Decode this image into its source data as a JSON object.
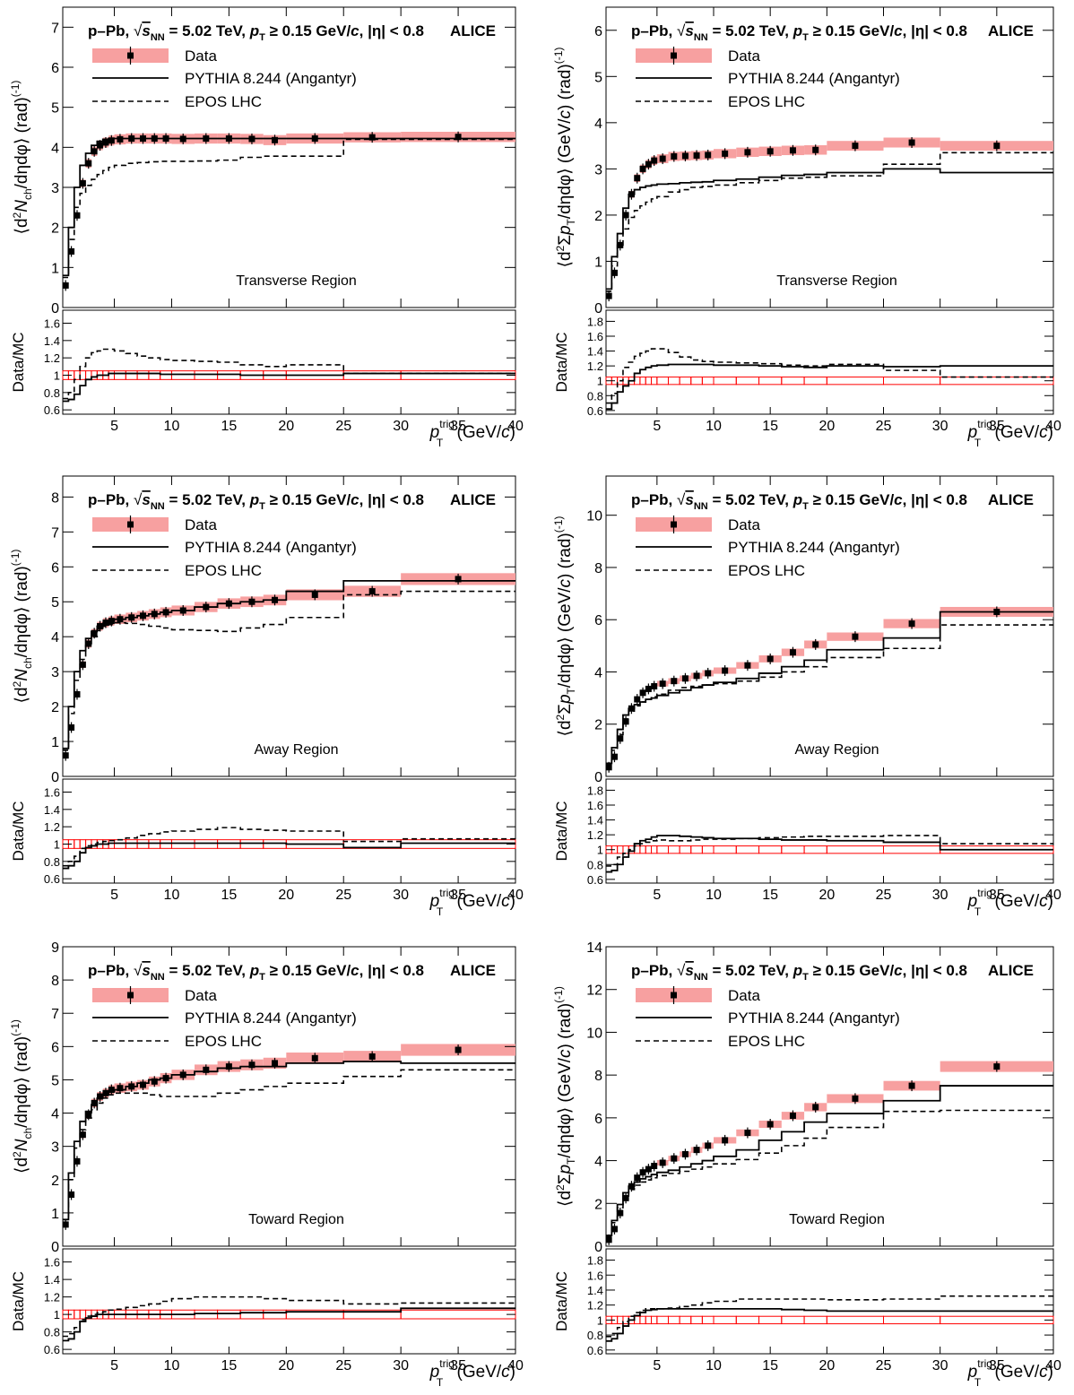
{
  "common": {
    "header_sys": "p–Pb, ",
    "header_sqrt": "√",
    "header_s": "s",
    "header_nn": "NN",
    "header_eq": " =  5.02 TeV, ",
    "header_p": "p",
    "header_t": "T",
    "header_cut": " ≥ 0.15 GeV/",
    "header_c": "c",
    "header_eta": ", |η| < 0.8",
    "alice": "ALICE",
    "legend_data": "Data",
    "legend_pythia": "PYTHIA 8.244 (Angantyr)",
    "legend_epos": "EPOS LHC",
    "ratio_ylabel": "Data/MC",
    "x_p": "p",
    "x_t": "T",
    "x_trig": "trig",
    "x_unit_a": " (GeV/",
    "x_unit_c": "c",
    "x_unit_b": ")",
    "y_nch_a": "⟨d",
    "y_nch_sup2": "2",
    "y_nch_N": "N",
    "y_nch_ch": "ch",
    "y_nch_rest": "/dηdφ⟩ (rad)",
    "y_nch_exp": "(-1)",
    "y_pt_a": "⟨d",
    "y_pt_sup2": "2",
    "y_pt_sigma": "Σ",
    "y_pt_p": "p",
    "y_pt_T": "T",
    "y_pt_rest": "/dηdφ⟩ (GeV/",
    "y_pt_c": "c",
    "y_pt_rest2": ") (rad)",
    "y_pt_exp": "(-1)"
  },
  "colors": {
    "band": "#f7a0a0",
    "data": "#000000",
    "pythia": "#000000",
    "epos": "#000000",
    "ratio_err": "#ff0000"
  },
  "chart_data": [
    {
      "type": "line",
      "region_label": "Transverse Region",
      "quantity": "Nch",
      "xlim": [
        0.5,
        40
      ],
      "ylim": [
        0,
        7.5
      ],
      "yticks": [
        0,
        1,
        2,
        3,
        4,
        5,
        6,
        7
      ],
      "ratio_ylim": [
        0.55,
        1.75
      ],
      "ratio_yticks": [
        0.6,
        0.8,
        1,
        1.2,
        1.4,
        1.6
      ],
      "xticks": [
        5,
        10,
        15,
        20,
        25,
        30,
        35,
        40
      ],
      "bins": [
        0.5,
        1,
        1.5,
        2,
        2.5,
        3,
        3.5,
        4,
        4.5,
        5,
        6,
        7,
        8,
        9,
        10,
        12,
        14,
        16,
        18,
        20,
        25,
        30,
        40
      ],
      "data": [
        0.55,
        1.4,
        2.3,
        3.1,
        3.6,
        3.9,
        4.05,
        4.12,
        4.17,
        4.2,
        4.22,
        4.22,
        4.22,
        4.22,
        4.21,
        4.22,
        4.22,
        4.21,
        4.18,
        4.22,
        4.25,
        4.26
      ],
      "pythia": [
        0.8,
        2.0,
        3.0,
        3.55,
        3.85,
        4.05,
        4.15,
        4.2,
        4.22,
        4.22,
        4.22,
        4.22,
        4.22,
        4.22,
        4.22,
        4.22,
        4.22,
        4.22,
        4.22,
        4.22,
        4.22,
        4.22
      ],
      "epos": [
        0.75,
        1.7,
        2.5,
        2.85,
        3.05,
        3.2,
        3.32,
        3.42,
        3.5,
        3.55,
        3.6,
        3.62,
        3.64,
        3.65,
        3.65,
        3.66,
        3.68,
        3.75,
        3.78,
        3.78,
        4.2,
        4.2
      ],
      "ratio_pythia": [
        0.7,
        0.72,
        0.78,
        0.88,
        0.95,
        0.98,
        1.0,
        1.0,
        1.02,
        1.02,
        1.02,
        1.02,
        1.02,
        1.01,
        1.01,
        1.01,
        1.01,
        1.0,
        1.0,
        1.0,
        1.02,
        1.02
      ],
      "ratio_epos": [
        0.73,
        0.8,
        0.95,
        1.1,
        1.2,
        1.26,
        1.28,
        1.3,
        1.3,
        1.28,
        1.25,
        1.22,
        1.2,
        1.18,
        1.17,
        1.16,
        1.15,
        1.12,
        1.1,
        1.12,
        1.02,
        1.02
      ]
    },
    {
      "type": "line",
      "region_label": "Transverse Region",
      "quantity": "SumPt",
      "xlim": [
        0.5,
        40
      ],
      "ylim": [
        0,
        6.5
      ],
      "yticks": [
        0,
        1,
        2,
        3,
        4,
        5,
        6
      ],
      "ratio_ylim": [
        0.55,
        1.95
      ],
      "ratio_yticks": [
        0.6,
        0.8,
        1,
        1.2,
        1.4,
        1.6,
        1.8
      ],
      "xticks": [
        5,
        10,
        15,
        20,
        25,
        30,
        35,
        40
      ],
      "bins": [
        0.5,
        1,
        1.5,
        2,
        2.5,
        3,
        3.5,
        4,
        4.5,
        5,
        6,
        7,
        8,
        9,
        10,
        12,
        14,
        16,
        18,
        20,
        25,
        30,
        40
      ],
      "data": [
        0.25,
        0.75,
        1.35,
        2.0,
        2.45,
        2.8,
        3.0,
        3.1,
        3.18,
        3.22,
        3.27,
        3.28,
        3.29,
        3.3,
        3.33,
        3.36,
        3.38,
        3.4,
        3.41,
        3.5,
        3.57,
        3.5
      ],
      "pythia": [
        0.4,
        1.1,
        1.6,
        2.15,
        2.45,
        2.55,
        2.6,
        2.63,
        2.65,
        2.67,
        2.68,
        2.7,
        2.71,
        2.72,
        2.75,
        2.78,
        2.82,
        2.86,
        2.88,
        2.92,
        3.0,
        2.92
      ],
      "epos": [
        0.35,
        0.9,
        1.35,
        1.7,
        1.95,
        2.1,
        2.2,
        2.28,
        2.35,
        2.4,
        2.5,
        2.55,
        2.6,
        2.62,
        2.65,
        2.7,
        2.75,
        2.8,
        2.82,
        2.85,
        3.1,
        3.35
      ],
      "ratio_pythia": [
        0.62,
        0.7,
        0.85,
        0.93,
        1.0,
        1.1,
        1.15,
        1.18,
        1.2,
        1.21,
        1.22,
        1.22,
        1.22,
        1.22,
        1.21,
        1.21,
        1.2,
        1.19,
        1.18,
        1.2,
        1.19,
        1.2
      ],
      "ratio_epos": [
        0.7,
        0.83,
        1.0,
        1.18,
        1.25,
        1.33,
        1.37,
        1.4,
        1.43,
        1.43,
        1.38,
        1.32,
        1.28,
        1.26,
        1.25,
        1.24,
        1.23,
        1.21,
        1.2,
        1.22,
        1.14,
        1.05
      ]
    },
    {
      "type": "line",
      "region_label": "Away Region",
      "quantity": "Nch",
      "xlim": [
        0.5,
        40
      ],
      "ylim": [
        0,
        8.6
      ],
      "yticks": [
        0,
        1,
        2,
        3,
        4,
        5,
        6,
        7,
        8
      ],
      "ratio_ylim": [
        0.55,
        1.75
      ],
      "ratio_yticks": [
        0.6,
        0.8,
        1,
        1.2,
        1.4,
        1.6
      ],
      "xticks": [
        5,
        10,
        15,
        20,
        25,
        30,
        35,
        40
      ],
      "bins": [
        0.5,
        1,
        1.5,
        2,
        2.5,
        3,
        3.5,
        4,
        4.5,
        5,
        6,
        7,
        8,
        9,
        10,
        12,
        14,
        16,
        18,
        20,
        25,
        30,
        40
      ],
      "data": [
        0.6,
        1.4,
        2.35,
        3.2,
        3.8,
        4.1,
        4.3,
        4.4,
        4.45,
        4.5,
        4.55,
        4.6,
        4.65,
        4.7,
        4.75,
        4.85,
        4.95,
        5.0,
        5.05,
        5.2,
        5.3,
        5.65
      ],
      "pythia": [
        0.8,
        2.0,
        3.0,
        3.6,
        3.95,
        4.15,
        4.3,
        4.38,
        4.45,
        4.5,
        4.55,
        4.6,
        4.65,
        4.7,
        4.75,
        4.85,
        4.95,
        5.0,
        5.05,
        5.3,
        5.6,
        5.6
      ],
      "epos": [
        0.75,
        1.8,
        2.75,
        3.35,
        3.75,
        4.0,
        4.18,
        4.3,
        4.35,
        4.4,
        4.38,
        4.35,
        4.3,
        4.25,
        4.2,
        4.18,
        4.15,
        4.25,
        4.35,
        4.55,
        5.2,
        5.3
      ],
      "ratio_pythia": [
        0.72,
        0.75,
        0.8,
        0.9,
        0.96,
        0.98,
        1.0,
        1.0,
        1.01,
        1.01,
        1.01,
        1.01,
        1.01,
        1.01,
        1.01,
        1.01,
        1.01,
        1.01,
        1.01,
        1.0,
        0.96,
        1.01
      ],
      "ratio_epos": [
        0.75,
        0.8,
        0.86,
        0.95,
        0.98,
        1.0,
        1.02,
        1.03,
        1.04,
        1.05,
        1.07,
        1.1,
        1.12,
        1.14,
        1.15,
        1.17,
        1.19,
        1.17,
        1.16,
        1.15,
        1.03,
        1.06
      ]
    },
    {
      "type": "line",
      "region_label": "Away Region",
      "quantity": "SumPt",
      "xlim": [
        0.5,
        40
      ],
      "ylim": [
        0,
        11.5
      ],
      "yticks": [
        0,
        2,
        4,
        6,
        8,
        10
      ],
      "ratio_ylim": [
        0.55,
        1.95
      ],
      "ratio_yticks": [
        0.6,
        0.8,
        1,
        1.2,
        1.4,
        1.6,
        1.8
      ],
      "xticks": [
        5,
        10,
        15,
        20,
        25,
        30,
        35,
        40
      ],
      "bins": [
        0.5,
        1,
        1.5,
        2,
        2.5,
        3,
        3.5,
        4,
        4.5,
        5,
        6,
        7,
        8,
        9,
        10,
        12,
        14,
        16,
        18,
        20,
        25,
        30,
        40
      ],
      "data": [
        0.35,
        0.75,
        1.45,
        2.1,
        2.6,
        2.95,
        3.2,
        3.35,
        3.45,
        3.55,
        3.65,
        3.75,
        3.85,
        3.95,
        4.05,
        4.25,
        4.5,
        4.75,
        5.05,
        5.35,
        5.85,
        6.3,
        7.4
      ],
      "pythia": [
        0.5,
        1.1,
        1.8,
        2.35,
        2.6,
        2.75,
        2.85,
        2.95,
        3.0,
        3.1,
        3.2,
        3.3,
        3.4,
        3.5,
        3.6,
        3.75,
        3.95,
        4.2,
        4.45,
        4.85,
        5.3,
        6.3,
        7.05
      ],
      "epos": [
        0.45,
        1.0,
        1.6,
        2.2,
        2.5,
        2.7,
        2.85,
        2.95,
        3.05,
        3.15,
        3.3,
        3.4,
        3.45,
        3.5,
        3.55,
        3.65,
        3.8,
        4.0,
        4.2,
        4.55,
        4.9,
        5.8,
        6.35
      ],
      "ratio_pythia": [
        0.7,
        0.72,
        0.8,
        0.9,
        0.98,
        1.08,
        1.12,
        1.14,
        1.17,
        1.19,
        1.19,
        1.18,
        1.17,
        1.16,
        1.15,
        1.15,
        1.14,
        1.13,
        1.13,
        1.12,
        1.1,
        1.0,
        1.05
      ],
      "ratio_epos": [
        0.78,
        0.8,
        0.9,
        0.95,
        1.0,
        1.05,
        1.08,
        1.1,
        1.12,
        1.13,
        1.12,
        1.12,
        1.13,
        1.14,
        1.14,
        1.15,
        1.16,
        1.17,
        1.18,
        1.18,
        1.19,
        1.08,
        1.17
      ]
    },
    {
      "type": "line",
      "region_label": "Toward Region",
      "quantity": "Nch",
      "xlim": [
        0.5,
        40
      ],
      "ylim": [
        0,
        9
      ],
      "yticks": [
        0,
        1,
        2,
        3,
        4,
        5,
        6,
        7,
        8,
        9
      ],
      "ratio_ylim": [
        0.55,
        1.75
      ],
      "ratio_yticks": [
        0.6,
        0.8,
        1,
        1.2,
        1.4,
        1.6
      ],
      "xticks": [
        5,
        10,
        15,
        20,
        25,
        30,
        35,
        40
      ],
      "bins": [
        0.5,
        1,
        1.5,
        2,
        2.5,
        3,
        3.5,
        4,
        4.5,
        5,
        6,
        7,
        8,
        9,
        10,
        12,
        14,
        16,
        18,
        20,
        25,
        30,
        40
      ],
      "data": [
        0.65,
        1.55,
        2.55,
        3.35,
        3.95,
        4.3,
        4.5,
        4.6,
        4.7,
        4.75,
        4.8,
        4.85,
        4.95,
        5.05,
        5.15,
        5.3,
        5.4,
        5.45,
        5.5,
        5.65,
        5.7,
        5.9
      ],
      "pythia": [
        0.8,
        2.2,
        3.15,
        3.75,
        4.05,
        4.25,
        4.45,
        4.55,
        4.65,
        4.7,
        4.8,
        4.9,
        5.0,
        5.05,
        5.15,
        5.25,
        5.35,
        5.4,
        5.4,
        5.5,
        5.55,
        5.5
      ],
      "epos": [
        0.8,
        2.0,
        2.95,
        3.5,
        3.85,
        4.1,
        4.3,
        4.45,
        4.55,
        4.6,
        4.6,
        4.6,
        4.55,
        4.5,
        4.5,
        4.5,
        4.6,
        4.7,
        4.8,
        4.9,
        5.1,
        5.3
      ],
      "ratio_pythia": [
        0.7,
        0.72,
        0.8,
        0.92,
        0.96,
        0.98,
        1.0,
        1.0,
        1.0,
        1.0,
        1.0,
        1.0,
        1.0,
        1.0,
        1.0,
        1.01,
        1.01,
        1.02,
        1.02,
        1.03,
        1.03,
        1.07
      ],
      "ratio_epos": [
        0.75,
        0.78,
        0.85,
        0.94,
        0.98,
        1.0,
        1.02,
        1.03,
        1.05,
        1.06,
        1.08,
        1.1,
        1.12,
        1.15,
        1.18,
        1.2,
        1.2,
        1.2,
        1.18,
        1.16,
        1.12,
        1.13
      ]
    },
    {
      "type": "line",
      "region_label": "Toward Region",
      "quantity": "SumPt",
      "xlim": [
        0.5,
        40
      ],
      "ylim": [
        0,
        14
      ],
      "yticks": [
        0,
        2,
        4,
        6,
        8,
        10,
        12,
        14
      ],
      "ratio_ylim": [
        0.55,
        1.95
      ],
      "ratio_yticks": [
        0.6,
        0.8,
        1,
        1.2,
        1.4,
        1.6,
        1.8
      ],
      "xticks": [
        5,
        10,
        15,
        20,
        25,
        30,
        35,
        40
      ],
      "bins": [
        0.5,
        1,
        1.5,
        2,
        2.5,
        3,
        3.5,
        4,
        4.5,
        5,
        6,
        7,
        8,
        9,
        10,
        12,
        14,
        16,
        18,
        20,
        25,
        30,
        40
      ],
      "data": [
        0.3,
        0.8,
        1.55,
        2.25,
        2.8,
        3.2,
        3.45,
        3.6,
        3.75,
        3.9,
        4.1,
        4.3,
        4.5,
        4.7,
        4.95,
        5.3,
        5.7,
        6.1,
        6.5,
        6.9,
        7.5,
        8.4,
        9.3
      ],
      "pythia": [
        0.5,
        1.2,
        1.95,
        2.5,
        2.8,
        3.0,
        3.15,
        3.25,
        3.35,
        3.45,
        3.55,
        3.7,
        3.85,
        4.0,
        4.2,
        4.5,
        4.95,
        5.35,
        5.8,
        6.2,
        6.8,
        7.5,
        8.5
      ],
      "epos": [
        0.45,
        1.1,
        1.8,
        2.35,
        2.65,
        2.85,
        3.0,
        3.1,
        3.2,
        3.3,
        3.4,
        3.5,
        3.6,
        3.7,
        3.85,
        4.05,
        4.35,
        4.7,
        5.05,
        5.55,
        6.3,
        6.35,
        7.75
      ],
      "ratio_pythia": [
        0.72,
        0.75,
        0.82,
        0.92,
        1.0,
        1.06,
        1.1,
        1.13,
        1.14,
        1.15,
        1.15,
        1.15,
        1.15,
        1.15,
        1.15,
        1.15,
        1.15,
        1.14,
        1.13,
        1.12,
        1.12,
        1.12,
        1.1
      ],
      "ratio_epos": [
        0.78,
        0.82,
        0.9,
        0.98,
        1.05,
        1.1,
        1.13,
        1.15,
        1.15,
        1.15,
        1.16,
        1.18,
        1.2,
        1.23,
        1.25,
        1.28,
        1.28,
        1.28,
        1.28,
        1.27,
        1.28,
        1.32,
        1.2
      ]
    }
  ]
}
